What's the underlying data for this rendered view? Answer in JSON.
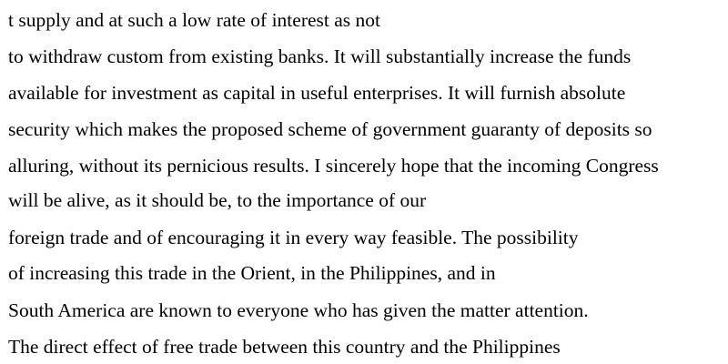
{
  "document": {
    "lines": [
      "t supply and at such a low rate of interest as not",
      "to withdraw custom from existing banks. It will substantially increase the funds",
      "available for investment as capital in useful enterprises. It will furnish absolute",
      "security which makes the proposed scheme of government guaranty of deposits so",
      "alluring, without its pernicious results. I sincerely hope that the incoming Congress",
      "will be alive, as it should be, to the importance of our",
      "foreign trade and of encouraging it in every way feasible. The possibility",
      "of increasing this trade in the Orient, in the Philippines, and in",
      "South America are known to everyone who has given the matter attention.",
      "The direct effect of free trade between this country and the Philippines"
    ]
  }
}
